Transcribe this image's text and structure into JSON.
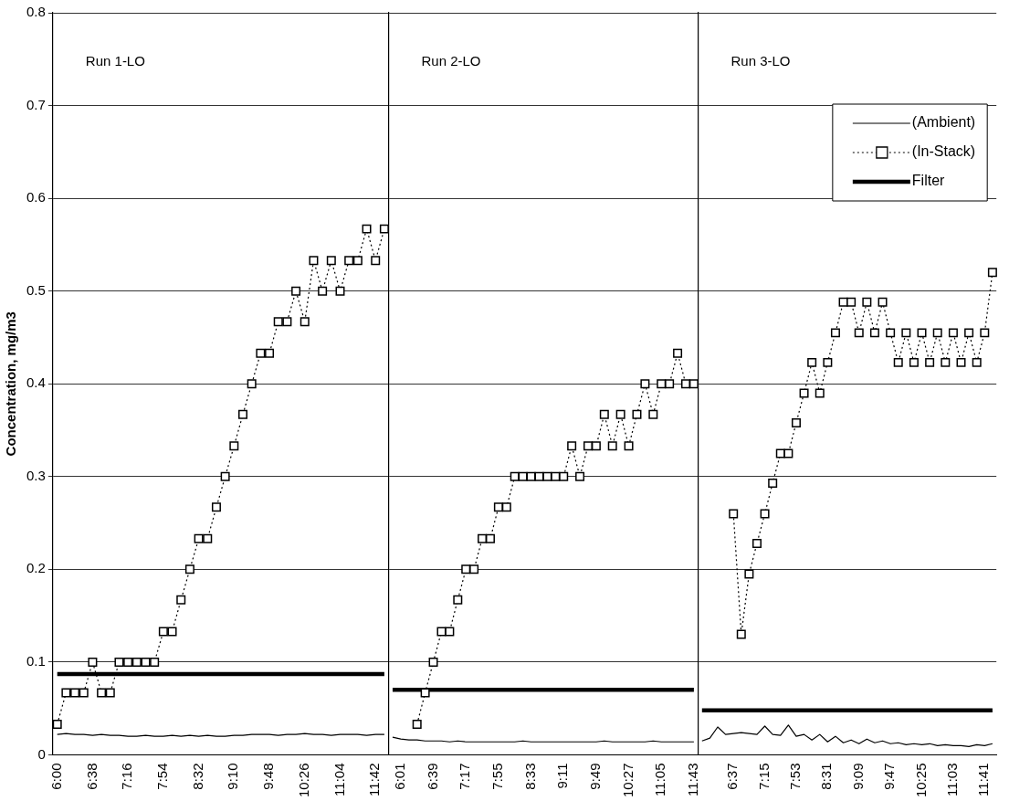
{
  "chart_data": [
    {
      "type": "line",
      "annotations": [
        "Run 1-LO"
      ],
      "ylabel": "Concentration, mg/m3",
      "ylim": [
        0,
        0.8
      ],
      "yticks": [
        0,
        0.1,
        0.2,
        0.3,
        0.4,
        0.5,
        0.6,
        0.7,
        0.8
      ],
      "grid": "y",
      "legend": false,
      "categories": [
        "6:00",
        null,
        null,
        null,
        "6:38",
        null,
        null,
        null,
        "7:16",
        null,
        null,
        null,
        "7:54",
        null,
        null,
        null,
        "8:32",
        null,
        null,
        null,
        "9:10",
        null,
        null,
        null,
        "9:48",
        null,
        null,
        null,
        "10:26",
        null,
        null,
        null,
        "11:04",
        null,
        null,
        null,
        "11:42",
        null
      ],
      "series": [
        {
          "color": "#000000",
          "marker": "none",
          "line_style": "solid",
          "values": [
            0.022,
            0.023,
            0.022,
            0.022,
            0.021,
            0.022,
            0.021,
            0.021,
            0.02,
            0.02,
            0.021,
            0.02,
            0.02,
            0.021,
            0.02,
            0.021,
            0.02,
            0.021,
            0.02,
            0.02,
            0.021,
            0.021,
            0.022,
            0.022,
            0.022,
            0.021,
            0.022,
            0.022,
            0.023,
            0.022,
            0.022,
            0.021,
            0.022,
            0.022,
            0.022,
            0.021,
            0.022,
            0.022
          ]
        },
        {
          "color": "#000000",
          "marker": "square",
          "line_style": "dotted",
          "values": [
            0.033,
            0.067,
            0.067,
            0.067,
            0.1,
            0.067,
            0.067,
            0.1,
            0.1,
            0.1,
            0.1,
            0.1,
            0.133,
            0.133,
            0.167,
            0.2,
            0.233,
            0.233,
            0.267,
            0.3,
            0.333,
            0.367,
            0.4,
            0.433,
            0.433,
            0.467,
            0.467,
            0.5,
            0.467,
            0.533,
            0.5,
            0.533,
            0.5,
            0.533,
            0.533,
            0.567,
            0.533,
            0.567
          ]
        },
        {
          "color": "#000000",
          "marker": "none",
          "line_style": "solid",
          "values": [
            0.087,
            0.087,
            0.087,
            0.087,
            0.087,
            0.087,
            0.087,
            0.087,
            0.087,
            0.087,
            0.087,
            0.087,
            0.087,
            0.087,
            0.087,
            0.087,
            0.087,
            0.087,
            0.087,
            0.087,
            0.087,
            0.087,
            0.087,
            0.087,
            0.087,
            0.087,
            0.087,
            0.087,
            0.087,
            0.087,
            0.087,
            0.087,
            0.087,
            0.087,
            0.087,
            0.087,
            0.087,
            0.087
          ]
        }
      ]
    },
    {
      "type": "line",
      "annotations": [
        "Run 2-LO"
      ],
      "ylim": [
        0,
        0.8
      ],
      "yticks": [
        0,
        0.1,
        0.2,
        0.3,
        0.4,
        0.5,
        0.6,
        0.7,
        0.8
      ],
      "grid": "y",
      "legend": false,
      "tick_labels": "x",
      "categories": [
        null,
        "6:01",
        null,
        null,
        null,
        "6:39",
        null,
        null,
        null,
        "7:17",
        null,
        null,
        null,
        "7:55",
        null,
        null,
        null,
        "8:33",
        null,
        null,
        null,
        "9:11",
        null,
        null,
        null,
        "9:49",
        null,
        null,
        null,
        "10:27",
        null,
        null,
        null,
        "11:05",
        null,
        null,
        null,
        "11:43"
      ],
      "series": [
        {
          "color": "#000000",
          "marker": "none",
          "line_style": "solid",
          "values": [
            0.019,
            0.017,
            0.016,
            0.016,
            0.015,
            0.015,
            0.015,
            0.014,
            0.015,
            0.014,
            0.014,
            0.014,
            0.014,
            0.014,
            0.014,
            0.014,
            0.015,
            0.014,
            0.014,
            0.014,
            0.014,
            0.014,
            0.014,
            0.014,
            0.014,
            0.014,
            0.015,
            0.014,
            0.014,
            0.014,
            0.014,
            0.014,
            0.015,
            0.014,
            0.014,
            0.014,
            0.014,
            0.014
          ]
        },
        {
          "color": "#000000",
          "marker": "square",
          "line_style": "dotted",
          "values": [
            null,
            null,
            null,
            0.033,
            0.067,
            0.1,
            0.133,
            0.133,
            0.167,
            0.2,
            0.2,
            0.233,
            0.233,
            0.267,
            0.267,
            0.3,
            0.3,
            0.3,
            0.3,
            0.3,
            0.3,
            0.3,
            0.333,
            0.3,
            0.333,
            0.333,
            0.367,
            0.333,
            0.367,
            0.333,
            0.367,
            0.4,
            0.367,
            0.4,
            0.4,
            0.433,
            0.4,
            0.4
          ]
        },
        {
          "color": "#000000",
          "marker": "none",
          "line_style": "solid",
          "values": [
            0.07,
            0.07,
            0.07,
            0.07,
            0.07,
            0.07,
            0.07,
            0.07,
            0.07,
            0.07,
            0.07,
            0.07,
            0.07,
            0.07,
            0.07,
            0.07,
            0.07,
            0.07,
            0.07,
            0.07,
            0.07,
            0.07,
            0.07,
            0.07,
            0.07,
            0.07,
            0.07,
            0.07,
            0.07,
            0.07,
            0.07,
            0.07,
            0.07,
            0.07,
            0.07,
            0.07,
            0.07,
            0.07
          ]
        }
      ]
    },
    {
      "type": "line",
      "annotations": [
        "Run 3-LO"
      ],
      "ylim": [
        0,
        0.8
      ],
      "yticks": [
        0,
        0.1,
        0.2,
        0.3,
        0.4,
        0.5,
        0.6,
        0.7,
        0.8
      ],
      "grid": "y",
      "legend": "top right",
      "tick_labels": "x",
      "categories": [
        null,
        null,
        null,
        null,
        "6:37",
        null,
        null,
        null,
        "7:15",
        null,
        null,
        null,
        "7:53",
        null,
        null,
        null,
        "8:31",
        null,
        null,
        null,
        "9:09",
        null,
        null,
        null,
        "9:47",
        null,
        null,
        null,
        "10:25",
        null,
        null,
        null,
        "11:03",
        null,
        null,
        null,
        "11:41",
        null
      ],
      "series": [
        {
          "name": "(Ambient)",
          "color": "#000000",
          "marker": "none",
          "line_style": "solid",
          "values": [
            0.015,
            0.018,
            0.03,
            0.022,
            0.023,
            0.024,
            0.023,
            0.022,
            0.031,
            0.022,
            0.021,
            0.032,
            0.02,
            0.022,
            0.016,
            0.022,
            0.014,
            0.02,
            0.013,
            0.016,
            0.012,
            0.017,
            0.013,
            0.015,
            0.012,
            0.013,
            0.011,
            0.012,
            0.011,
            0.012,
            0.01,
            0.011,
            0.01,
            0.01,
            0.009,
            0.011,
            0.01,
            0.012
          ]
        },
        {
          "name": "(In-Stack)",
          "color": "#000000",
          "marker": "square",
          "line_style": "dotted",
          "values": [
            null,
            null,
            null,
            null,
            0.26,
            0.13,
            0.195,
            0.228,
            0.26,
            0.293,
            0.325,
            0.325,
            0.358,
            0.39,
            0.423,
            0.39,
            0.423,
            0.455,
            0.488,
            0.488,
            0.455,
            0.488,
            0.455,
            0.488,
            0.455,
            0.423,
            0.455,
            0.423,
            0.455,
            0.423,
            0.455,
            0.423,
            0.455,
            0.423,
            0.455,
            0.423,
            0.455,
            0.52
          ]
        },
        {
          "name": "Filter",
          "color": "#000000",
          "marker": "none",
          "line_style": "solid",
          "values": [
            0.048,
            0.048,
            0.048,
            0.048,
            0.048,
            0.048,
            0.048,
            0.048,
            0.048,
            0.048,
            0.048,
            0.048,
            0.048,
            0.048,
            0.048,
            0.048,
            0.048,
            0.048,
            0.048,
            0.048,
            0.048,
            0.048,
            0.048,
            0.048,
            0.048,
            0.048,
            0.048,
            0.048,
            0.048,
            0.048,
            0.048,
            0.048,
            0.048,
            0.048,
            0.048,
            0.048,
            0.048,
            0.048
          ]
        }
      ]
    }
  ]
}
